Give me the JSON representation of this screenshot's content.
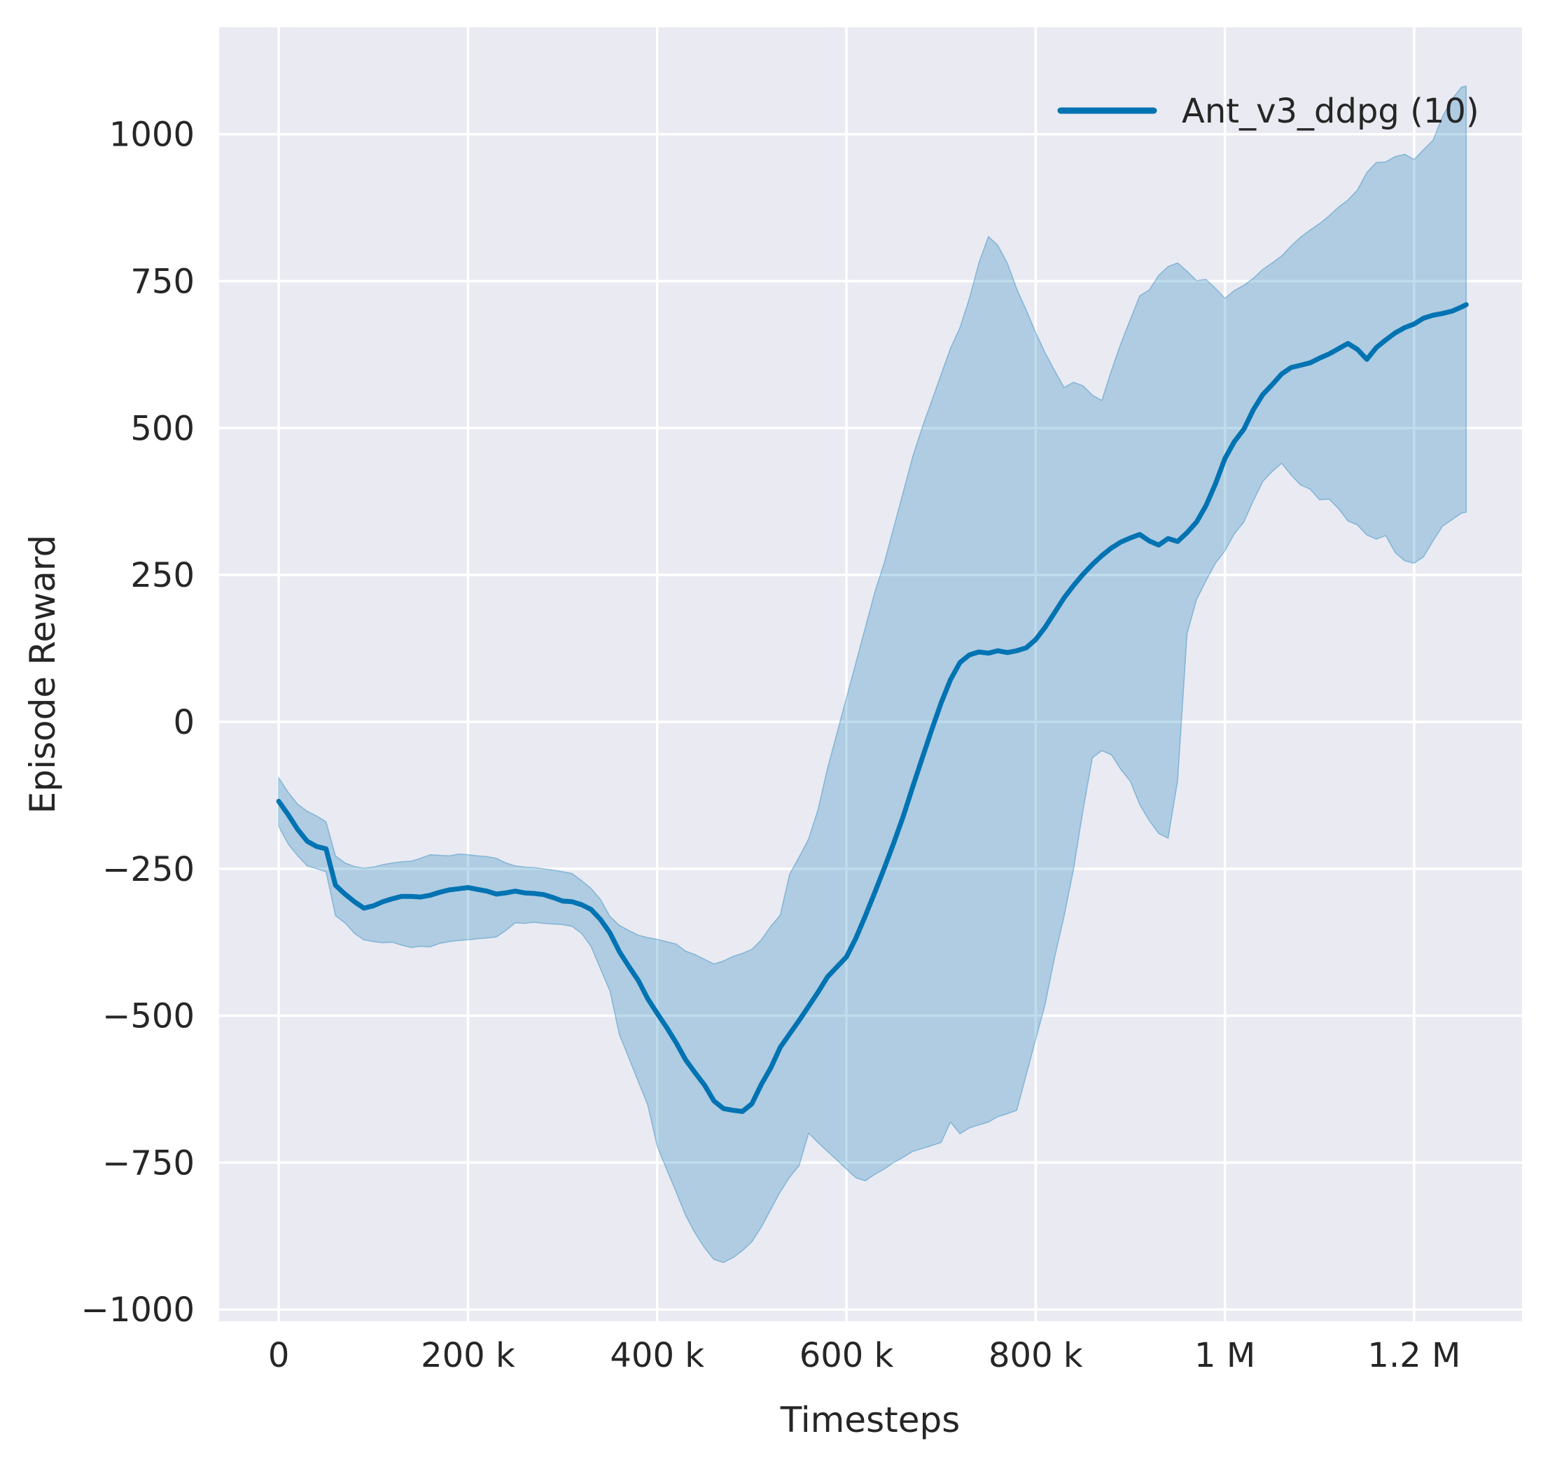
{
  "chart_data": {
    "type": "line",
    "title": "",
    "xlabel": "Timesteps",
    "ylabel": "Episode Reward",
    "xlim": [
      -63000,
      1314000
    ],
    "ylim": [
      -1020,
      1182
    ],
    "grid": true,
    "legend_position": "upper right",
    "plot_background": "#eaeaf2",
    "gridline_color": "#ffffff",
    "text_color": "#262626",
    "x_ticks": [
      {
        "value": 0,
        "label": "0"
      },
      {
        "value": 200000,
        "label": "200 k"
      },
      {
        "value": 400000,
        "label": "400 k"
      },
      {
        "value": 600000,
        "label": "600 k"
      },
      {
        "value": 800000,
        "label": "800 k"
      },
      {
        "value": 1000000,
        "label": "1 M"
      },
      {
        "value": 1200000,
        "label": "1.2 M"
      }
    ],
    "y_ticks": [
      {
        "value": -1000,
        "label": "−1000"
      },
      {
        "value": -750,
        "label": "−750"
      },
      {
        "value": -500,
        "label": "−500"
      },
      {
        "value": -250,
        "label": "−250"
      },
      {
        "value": 0,
        "label": "0"
      },
      {
        "value": 250,
        "label": "250"
      },
      {
        "value": 500,
        "label": "500"
      },
      {
        "value": 750,
        "label": "750"
      },
      {
        "value": 1000,
        "label": "1000"
      }
    ],
    "series": [
      {
        "name": "Ant_v3_ddpg (10)",
        "color": "#0173b2",
        "band_color": "#0173b2",
        "band_opacity": 0.25,
        "line_width": 7,
        "x": [
          0,
          10000,
          20000,
          30000,
          40000,
          50000,
          60000,
          70000,
          80000,
          90000,
          100000,
          110000,
          120000,
          130000,
          140000,
          150000,
          160000,
          170000,
          180000,
          190000,
          200000,
          210000,
          220000,
          230000,
          240000,
          250000,
          260000,
          270000,
          280000,
          290000,
          300000,
          310000,
          320000,
          330000,
          340000,
          350000,
          360000,
          370000,
          380000,
          390000,
          400000,
          410000,
          420000,
          430000,
          440000,
          450000,
          460000,
          470000,
          480000,
          490000,
          500000,
          510000,
          520000,
          530000,
          540000,
          550000,
          560000,
          570000,
          580000,
          590000,
          600000,
          610000,
          620000,
          630000,
          640000,
          650000,
          660000,
          670000,
          680000,
          690000,
          700000,
          710000,
          720000,
          730000,
          740000,
          750000,
          760000,
          770000,
          780000,
          790000,
          800000,
          810000,
          820000,
          830000,
          840000,
          850000,
          860000,
          870000,
          880000,
          890000,
          900000,
          910000,
          920000,
          930000,
          940000,
          950000,
          960000,
          970000,
          980000,
          990000,
          1000000,
          1010000,
          1020000,
          1030000,
          1040000,
          1050000,
          1060000,
          1070000,
          1080000,
          1090000,
          1100000,
          1110000,
          1120000,
          1130000,
          1140000,
          1150000,
          1160000,
          1170000,
          1180000,
          1190000,
          1200000,
          1210000,
          1220000,
          1230000,
          1240000,
          1250000,
          1255000
        ],
        "mean": [
          -135,
          -158,
          -183,
          -203,
          -212,
          -216,
          -278,
          -293,
          -306,
          -317,
          -313,
          -306,
          -301,
          -297,
          -297,
          -298,
          -295,
          -290,
          -286,
          -284,
          -282,
          -285,
          -288,
          -293,
          -291,
          -288,
          -291,
          -292,
          -294,
          -299,
          -305,
          -306,
          -311,
          -319,
          -336,
          -359,
          -391,
          -416,
          -440,
          -471,
          -496,
          -520,
          -546,
          -575,
          -597,
          -618,
          -645,
          -658,
          -661,
          -663,
          -650,
          -617,
          -589,
          -554,
          -531,
          -508,
          -484,
          -460,
          -434,
          -417,
          -400,
          -368,
          -330,
          -290,
          -249,
          -206,
          -161,
          -111,
          -62,
          -14,
          32,
          72,
          101,
          114,
          119,
          117,
          121,
          118,
          121,
          126,
          140,
          161,
          186,
          211,
          232,
          251,
          268,
          283,
          296,
          306,
          313,
          319,
          308,
          301,
          312,
          307,
          322,
          340,
          368,
          405,
          448,
          477,
          498,
          531,
          557,
          574,
          592,
          603,
          607,
          611,
          619,
          626,
          635,
          644,
          634,
          617,
          637,
          650,
          662,
          671,
          677,
          687,
          692,
          695,
          699,
          706,
          710
        ],
        "band_low": [
          -178,
          -208,
          -228,
          -245,
          -250,
          -255,
          -330,
          -342,
          -360,
          -371,
          -374,
          -376,
          -375,
          -380,
          -384,
          -382,
          -383,
          -377,
          -374,
          -372,
          -371,
          -369,
          -368,
          -366,
          -355,
          -342,
          -343,
          -341,
          -343,
          -344,
          -345,
          -348,
          -360,
          -382,
          -420,
          -458,
          -532,
          -572,
          -612,
          -652,
          -722,
          -762,
          -800,
          -840,
          -870,
          -895,
          -915,
          -920,
          -912,
          -900,
          -885,
          -860,
          -830,
          -800,
          -775,
          -755,
          -700,
          -716,
          -731,
          -746,
          -761,
          -776,
          -781,
          -770,
          -761,
          -750,
          -741,
          -731,
          -726,
          -721,
          -716,
          -681,
          -701,
          -691,
          -686,
          -681,
          -672,
          -667,
          -661,
          -601,
          -541,
          -481,
          -401,
          -331,
          -251,
          -151,
          -61,
          -49,
          -56,
          -81,
          -101,
          -141,
          -168,
          -190,
          -198,
          -100,
          150,
          208,
          240,
          270,
          291,
          320,
          340,
          376,
          409,
          426,
          440,
          420,
          403,
          396,
          378,
          379,
          363,
          342,
          335,
          318,
          311,
          317,
          288,
          274,
          270,
          281,
          308,
          333,
          344,
          355,
          357
        ],
        "band_high": [
          -95,
          -120,
          -140,
          -152,
          -160,
          -170,
          -228,
          -240,
          -246,
          -249,
          -247,
          -243,
          -240,
          -238,
          -237,
          -232,
          -226,
          -227,
          -228,
          -225,
          -226,
          -228,
          -229,
          -232,
          -240,
          -245,
          -247,
          -248,
          -250,
          -252,
          -255,
          -258,
          -270,
          -283,
          -302,
          -331,
          -346,
          -355,
          -363,
          -367,
          -370,
          -374,
          -378,
          -390,
          -396,
          -404,
          -412,
          -407,
          -399,
          -394,
          -387,
          -371,
          -348,
          -329,
          -259,
          -230,
          -199,
          -149,
          -79,
          -19,
          41,
          101,
          161,
          221,
          271,
          331,
          391,
          451,
          501,
          546,
          591,
          636,
          671,
          721,
          781,
          826,
          811,
          781,
          737,
          701,
          663,
          628,
          598,
          569,
          578,
          572,
          556,
          547,
          598,
          644,
          685,
          725,
          735,
          760,
          775,
          781,
          767,
          751,
          753,
          738,
          721,
          734,
          743,
          755,
          770,
          781,
          793,
          810,
          825,
          837,
          848,
          861,
          876,
          888,
          905,
          935,
          952,
          953,
          962,
          966,
          957,
          974,
          990,
          1030,
          1060,
          1080,
          1082
        ]
      }
    ]
  }
}
